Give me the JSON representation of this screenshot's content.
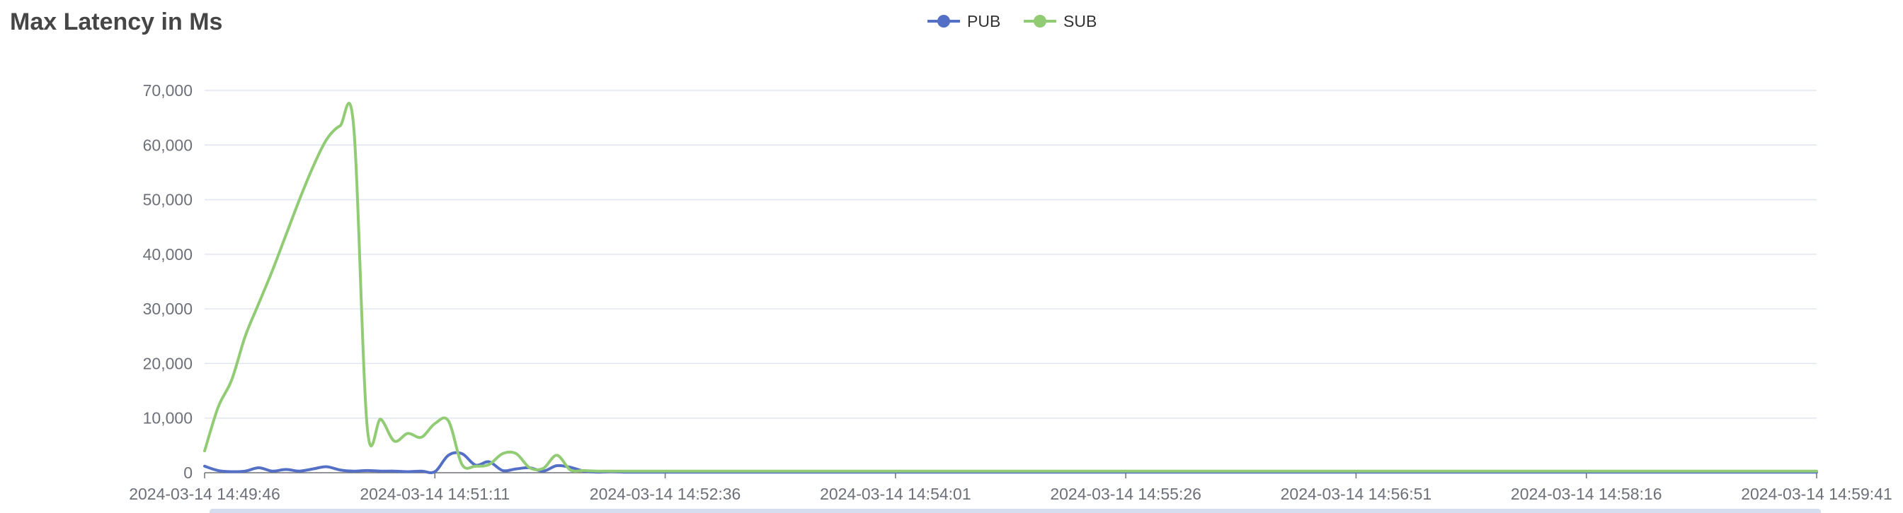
{
  "chart_data": {
    "type": "line",
    "title": "Max Latency in Ms",
    "xlabel": "",
    "ylabel": "",
    "ylim": [
      0,
      70000
    ],
    "y_ticks": [
      0,
      10000,
      20000,
      30000,
      40000,
      50000,
      60000,
      70000
    ],
    "y_tick_labels": [
      "0",
      "10,000",
      "20,000",
      "30,000",
      "40,000",
      "50,000",
      "60,000",
      "70,000"
    ],
    "x_tick_labels": [
      "2024-03-14 14:49:46",
      "2024-03-14 14:51:11",
      "2024-03-14 14:52:36",
      "2024-03-14 14:54:01",
      "2024-03-14 14:55:26",
      "2024-03-14 14:56:51",
      "2024-03-14 14:58:16",
      "2024-03-14 14:59:41"
    ],
    "xlim": [
      "2024-03-14 14:49:46",
      "2024-03-14 14:59:41"
    ],
    "x": [
      "2024-03-14 14:49:46",
      "2024-03-14 14:49:51",
      "2024-03-14 14:49:56",
      "2024-03-14 14:50:01",
      "2024-03-14 14:50:06",
      "2024-03-14 14:50:11",
      "2024-03-14 14:50:16",
      "2024-03-14 14:50:21",
      "2024-03-14 14:50:26",
      "2024-03-14 14:50:31",
      "2024-03-14 14:50:36",
      "2024-03-14 14:50:41",
      "2024-03-14 14:50:46",
      "2024-03-14 14:50:51",
      "2024-03-14 14:50:56",
      "2024-03-14 14:51:01",
      "2024-03-14 14:51:06",
      "2024-03-14 14:51:11",
      "2024-03-14 14:51:16",
      "2024-03-14 14:51:21",
      "2024-03-14 14:51:26",
      "2024-03-14 14:51:31",
      "2024-03-14 14:51:36",
      "2024-03-14 14:51:41",
      "2024-03-14 14:51:46",
      "2024-03-14 14:51:51",
      "2024-03-14 14:51:56",
      "2024-03-14 14:52:01",
      "2024-03-14 14:52:06",
      "2024-03-14 14:52:11",
      "2024-03-14 14:52:16",
      "2024-03-14 14:52:21",
      "2024-03-14 14:52:26",
      "2024-03-14 14:52:31",
      "2024-03-14 14:52:36",
      "2024-03-14 14:53:01",
      "2024-03-14 14:53:31",
      "2024-03-14 14:54:01",
      "2024-03-14 14:54:31",
      "2024-03-14 14:55:01",
      "2024-03-14 14:55:26",
      "2024-03-14 14:56:01",
      "2024-03-14 14:56:51",
      "2024-03-14 14:57:31",
      "2024-03-14 14:58:16",
      "2024-03-14 14:59:01",
      "2024-03-14 14:59:41"
    ],
    "series": [
      {
        "name": "PUB",
        "color": "#5470c6",
        "values": [
          1200,
          400,
          200,
          300,
          900,
          300,
          600,
          300,
          700,
          1100,
          500,
          300,
          400,
          300,
          300,
          200,
          300,
          200,
          3200,
          3500,
          1400,
          2000,
          400,
          700,
          900,
          300,
          1300,
          1000,
          300,
          100,
          200,
          100,
          100,
          100,
          100,
          100,
          100,
          100,
          100,
          100,
          100,
          100,
          100,
          100,
          100,
          100,
          100
        ]
      },
      {
        "name": "SUB",
        "color": "#91cc75",
        "values": [
          4000,
          12000,
          17000,
          25000,
          31000,
          37000,
          43500,
          50000,
          56000,
          61000,
          63500,
          63500,
          8500,
          9800,
          5800,
          7200,
          6500,
          9000,
          9500,
          1500,
          1200,
          1500,
          3500,
          3500,
          900,
          800,
          3200,
          500,
          400,
          300,
          300,
          300,
          300,
          300,
          300,
          300,
          300,
          300,
          300,
          300,
          300,
          300,
          300,
          300,
          300,
          300,
          300
        ]
      }
    ],
    "legend_position": "top-center",
    "grid": true
  }
}
